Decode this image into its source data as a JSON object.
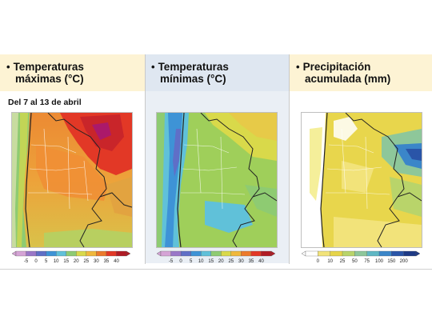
{
  "panels": [
    {
      "title_line1": "Temperaturas",
      "title_line2": "máximas (°C)",
      "date_range": "Del 7 al 13 de abril",
      "legend_ticks": [
        "-5",
        "0",
        "5",
        "10",
        "15",
        "20",
        "25",
        "30",
        "35",
        "40"
      ],
      "legend_colors": [
        "#d5a4d6",
        "#9a77c8",
        "#5f6fc7",
        "#3e93d6",
        "#60c1d9",
        "#8ecb72",
        "#d9d94a",
        "#f0b83c",
        "#ec7a2c",
        "#e23826",
        "#b11c25"
      ]
    },
    {
      "title_line1": "Temperaturas",
      "title_line2": "mínimas (°C)",
      "legend_ticks": [
        "-5",
        "0",
        "5",
        "10",
        "15",
        "20",
        "25",
        "30",
        "35",
        "40"
      ],
      "legend_colors": [
        "#d5a4d6",
        "#9a77c8",
        "#5f6fc7",
        "#3e93d6",
        "#60c1d9",
        "#8ecb72",
        "#d9d94a",
        "#f0b83c",
        "#ec7a2c",
        "#e23826",
        "#b11c25"
      ]
    },
    {
      "title_line1": "Precipitación",
      "title_line2": "acumulada (mm)",
      "legend_ticks": [
        "0",
        "10",
        "25",
        "50",
        "75",
        "100",
        "150",
        "200"
      ],
      "legend_colors": [
        "#ffffff",
        "#f2e37a",
        "#e6d44a",
        "#b9d46a",
        "#8ec79a",
        "#5fb7c4",
        "#3b86c9",
        "#2a55a8",
        "#1e3a86"
      ]
    }
  ],
  "colors": {
    "header_band": "#fdf3d4",
    "header_band_mid": "#dfe7f1",
    "bullet_color": "#111111"
  }
}
